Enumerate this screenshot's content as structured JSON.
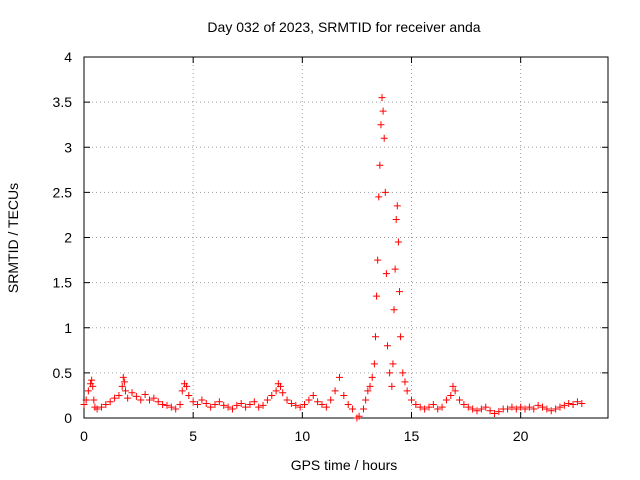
{
  "chart_data": {
    "type": "scatter",
    "title": "Day 032 of 2023, SRMTID for receiver anda",
    "xlabel": "GPS time / hours",
    "ylabel": "SRMTID / TECUs",
    "xlim": [
      0,
      24
    ],
    "ylim": [
      0,
      4
    ],
    "xticks": [
      0,
      5,
      10,
      15,
      20
    ],
    "xtick_labels": [
      "0",
      "5",
      "10",
      "15",
      "20"
    ],
    "yticks": [
      0,
      0.5,
      1,
      1.5,
      2,
      2.5,
      3,
      3.5,
      4
    ],
    "ytick_labels": [
      "0",
      "0.5",
      "1",
      "1.5",
      "2",
      "2.5",
      "3",
      "3.5",
      "4"
    ],
    "grid": true,
    "marker": "+",
    "series": [
      {
        "name": "SRMTID",
        "color": "#ff0000",
        "x": [
          0.0,
          0.1,
          0.2,
          0.3,
          0.35,
          0.4,
          0.45,
          0.5,
          0.6,
          0.8,
          1.0,
          1.2,
          1.4,
          1.6,
          1.75,
          1.8,
          1.85,
          1.9,
          2.0,
          2.2,
          2.4,
          2.6,
          2.8,
          3.0,
          3.2,
          3.4,
          3.6,
          3.8,
          4.0,
          4.2,
          4.4,
          4.5,
          4.6,
          4.7,
          4.8,
          5.0,
          5.2,
          5.4,
          5.6,
          5.8,
          6.0,
          6.2,
          6.4,
          6.6,
          6.8,
          7.0,
          7.2,
          7.4,
          7.6,
          7.8,
          8.0,
          8.2,
          8.4,
          8.6,
          8.8,
          8.9,
          9.0,
          9.1,
          9.3,
          9.5,
          9.7,
          9.9,
          10.1,
          10.3,
          10.5,
          10.7,
          10.9,
          11.1,
          11.3,
          11.5,
          11.7,
          11.9,
          12.1,
          12.3,
          12.5,
          12.6,
          12.8,
          12.9,
          13.0,
          13.1,
          13.2,
          13.3,
          13.35,
          13.4,
          13.45,
          13.5,
          13.55,
          13.6,
          13.65,
          13.7,
          13.75,
          13.8,
          13.85,
          13.9,
          14.0,
          14.1,
          14.15,
          14.2,
          14.25,
          14.3,
          14.35,
          14.4,
          14.45,
          14.5,
          14.6,
          14.7,
          14.8,
          15.0,
          15.2,
          15.4,
          15.6,
          15.8,
          16.0,
          16.2,
          16.4,
          16.6,
          16.8,
          16.9,
          17.0,
          17.2,
          17.4,
          17.6,
          17.8,
          18.0,
          18.2,
          18.4,
          18.6,
          18.8,
          19.0,
          19.2,
          19.4,
          19.6,
          19.8,
          20.0,
          20.2,
          20.4,
          20.6,
          20.8,
          21.0,
          21.2,
          21.4,
          21.6,
          21.8,
          22.0,
          22.2,
          22.4,
          22.6,
          22.8
        ],
        "y": [
          0.15,
          0.2,
          0.3,
          0.38,
          0.42,
          0.35,
          0.2,
          0.12,
          0.1,
          0.12,
          0.15,
          0.18,
          0.22,
          0.25,
          0.35,
          0.45,
          0.4,
          0.3,
          0.22,
          0.28,
          0.24,
          0.2,
          0.26,
          0.2,
          0.22,
          0.18,
          0.15,
          0.14,
          0.12,
          0.1,
          0.15,
          0.3,
          0.38,
          0.35,
          0.25,
          0.18,
          0.15,
          0.2,
          0.16,
          0.12,
          0.15,
          0.18,
          0.14,
          0.12,
          0.1,
          0.14,
          0.16,
          0.12,
          0.15,
          0.18,
          0.12,
          0.14,
          0.2,
          0.25,
          0.3,
          0.38,
          0.35,
          0.28,
          0.2,
          0.16,
          0.14,
          0.12,
          0.15,
          0.2,
          0.25,
          0.18,
          0.15,
          0.12,
          0.2,
          0.3,
          0.45,
          0.25,
          0.15,
          0.1,
          0.0,
          0.02,
          0.1,
          0.2,
          0.3,
          0.35,
          0.45,
          0.6,
          0.9,
          1.35,
          1.75,
          2.45,
          2.8,
          3.25,
          3.55,
          3.4,
          3.1,
          2.5,
          1.6,
          0.8,
          0.5,
          0.35,
          0.6,
          1.2,
          1.65,
          2.2,
          2.35,
          1.95,
          1.4,
          0.9,
          0.5,
          0.4,
          0.3,
          0.2,
          0.15,
          0.12,
          0.1,
          0.12,
          0.15,
          0.1,
          0.12,
          0.2,
          0.25,
          0.35,
          0.3,
          0.2,
          0.15,
          0.12,
          0.1,
          0.08,
          0.1,
          0.12,
          0.08,
          0.05,
          0.07,
          0.1,
          0.1,
          0.12,
          0.1,
          0.12,
          0.1,
          0.12,
          0.1,
          0.14,
          0.12,
          0.1,
          0.08,
          0.1,
          0.12,
          0.14,
          0.16,
          0.15,
          0.18,
          0.16
        ]
      }
    ]
  }
}
